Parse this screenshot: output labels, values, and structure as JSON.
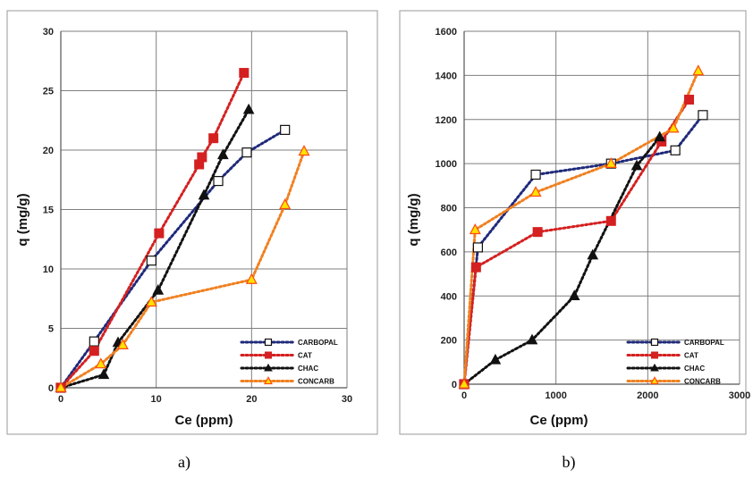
{
  "chart_data": [
    {
      "type": "line",
      "caption": "a)",
      "xlabel": "Ce (ppm)",
      "ylabel": "q (mg/g)",
      "xlim": [
        0,
        30
      ],
      "ylim": [
        0,
        30
      ],
      "xticks": [
        0,
        10,
        20,
        30
      ],
      "yticks": [
        0,
        5,
        10,
        15,
        20,
        25,
        30
      ],
      "grid": true,
      "legend_position": "bottom-right",
      "series": [
        {
          "name": "CARBOPAL",
          "color": "#1f2a7a",
          "marker": "open-square",
          "points": [
            [
              0,
              0
            ],
            [
              3.5,
              3.9
            ],
            [
              9.5,
              10.7
            ],
            [
              16.5,
              17.4
            ],
            [
              19.5,
              19.8
            ],
            [
              23.5,
              21.7
            ]
          ]
        },
        {
          "name": "CAT",
          "color": "#d42020",
          "marker": "filled-square",
          "points": [
            [
              0,
              0
            ],
            [
              3.5,
              3.1
            ],
            [
              10.3,
              13.0
            ],
            [
              14.5,
              18.8
            ],
            [
              14.8,
              19.4
            ],
            [
              16,
              21.0
            ],
            [
              19.2,
              26.5
            ]
          ]
        },
        {
          "name": "CHAC",
          "color": "#111111",
          "marker": "filled-triangle",
          "points": [
            [
              0,
              0
            ],
            [
              4.5,
              1.1
            ],
            [
              6,
              3.8
            ],
            [
              10.2,
              8.2
            ],
            [
              15,
              16.2
            ],
            [
              17,
              19.6
            ],
            [
              19.7,
              23.4
            ]
          ]
        },
        {
          "name": "CONCARB",
          "color": "#f08020",
          "marker": "open-triangle",
          "points": [
            [
              0,
              0
            ],
            [
              4.2,
              2.0
            ],
            [
              6.5,
              3.6
            ],
            [
              9.5,
              7.2
            ],
            [
              20,
              9.1
            ],
            [
              23.5,
              15.4
            ],
            [
              25.5,
              19.9
            ]
          ]
        }
      ]
    },
    {
      "type": "line",
      "caption": "b)",
      "xlabel": "Ce (ppm)",
      "ylabel": "q (mg/g)",
      "xlim": [
        0,
        3000
      ],
      "ylim": [
        0,
        1600
      ],
      "xticks": [
        0,
        1000,
        2000,
        3000
      ],
      "yticks": [
        0,
        200,
        400,
        600,
        800,
        1000,
        1200,
        1400,
        1600
      ],
      "grid": true,
      "legend_position": "bottom-right",
      "series": [
        {
          "name": "CARBOPAL",
          "color": "#1f2a7a",
          "marker": "open-square",
          "points": [
            [
              0,
              0
            ],
            [
              150,
              620
            ],
            [
              780,
              950
            ],
            [
              1600,
              1000
            ],
            [
              2300,
              1060
            ],
            [
              2600,
              1220
            ]
          ]
        },
        {
          "name": "CAT",
          "color": "#d42020",
          "marker": "filled-square",
          "points": [
            [
              0,
              0
            ],
            [
              130,
              530
            ],
            [
              800,
              690
            ],
            [
              1600,
              740
            ],
            [
              2150,
              1100
            ],
            [
              2450,
              1290
            ]
          ]
        },
        {
          "name": "CHAC",
          "color": "#111111",
          "marker": "filled-triangle",
          "points": [
            [
              0,
              0
            ],
            [
              340,
              110
            ],
            [
              740,
              200
            ],
            [
              1200,
              400
            ],
            [
              1400,
              585
            ],
            [
              1880,
              990
            ],
            [
              2130,
              1120
            ]
          ]
        },
        {
          "name": "CONCARB",
          "color": "#f08020",
          "marker": "open-triangle",
          "points": [
            [
              0,
              0
            ],
            [
              120,
              700
            ],
            [
              780,
              870
            ],
            [
              1600,
              1000
            ],
            [
              2280,
              1160
            ],
            [
              2550,
              1420
            ]
          ]
        }
      ]
    }
  ]
}
